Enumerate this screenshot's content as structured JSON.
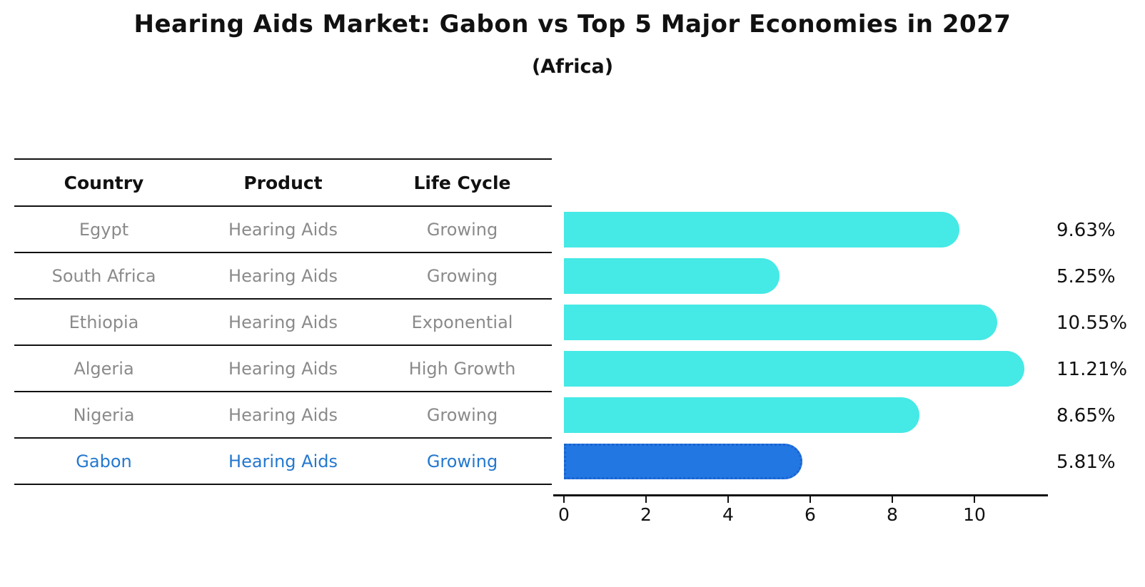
{
  "title": "Hearing Aids Market: Gabon vs Top 5 Major Economies in 2027",
  "subtitle": "(Africa)",
  "table": {
    "headers": {
      "country": "Country",
      "product": "Product",
      "life_cycle": "Life Cycle"
    },
    "rows": [
      {
        "country": "Egypt",
        "product": "Hearing Aids",
        "life_cycle": "Growing",
        "highlight": false
      },
      {
        "country": "South Africa",
        "product": "Hearing Aids",
        "life_cycle": "Growing",
        "highlight": false
      },
      {
        "country": "Ethiopia",
        "product": "Hearing Aids",
        "life_cycle": "Exponential",
        "highlight": false
      },
      {
        "country": "Algeria",
        "product": "Hearing Aids",
        "life_cycle": "High Growth",
        "highlight": false
      },
      {
        "country": "Nigeria",
        "product": "Hearing Aids",
        "life_cycle": "Growing",
        "highlight": false
      },
      {
        "country": "Gabon",
        "product": "Hearing Aids",
        "life_cycle": "Growing",
        "highlight": true
      }
    ]
  },
  "chart_data": {
    "type": "bar",
    "orientation": "horizontal",
    "title": "Hearing Aids Market: Gabon vs Top 5 Major Economies in 2027",
    "subtitle": "(Africa)",
    "categories": [
      "Egypt",
      "South Africa",
      "Ethiopia",
      "Algeria",
      "Nigeria",
      "Gabon"
    ],
    "values": [
      9.63,
      5.25,
      10.55,
      11.21,
      8.65,
      5.81
    ],
    "value_labels": [
      "9.63%",
      "5.25%",
      "10.55%",
      "11.21%",
      "8.65%",
      "5.81%"
    ],
    "unit": "percent",
    "xticks": [
      0,
      2,
      4,
      6,
      8,
      10
    ],
    "xtick_labels": [
      "0",
      "2",
      "4",
      "6",
      "8",
      "10"
    ],
    "xlim": [
      0,
      11.77
    ],
    "grid": false,
    "legend": false,
    "highlight_index": 5,
    "bar_color": "#45e9e5",
    "highlight_bar_color": "#2377e3",
    "highlight_border_color": "#1a63cf",
    "highlight_text_color": "#2478cf",
    "axis_color": "#111111",
    "muted_text_color": "#8a8a8a"
  }
}
